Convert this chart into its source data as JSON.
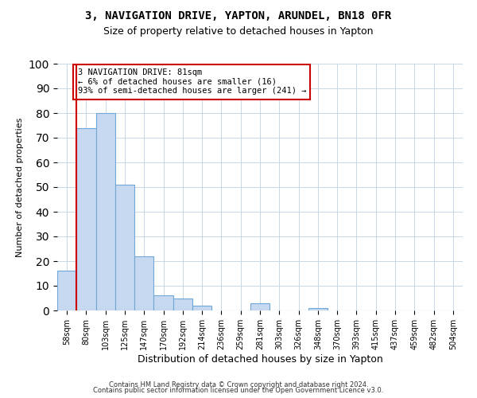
{
  "title": "3, NAVIGATION DRIVE, YAPTON, ARUNDEL, BN18 0FR",
  "subtitle": "Size of property relative to detached houses in Yapton",
  "xlabel": "Distribution of detached houses by size in Yapton",
  "ylabel": "Number of detached properties",
  "bin_labels": [
    "58sqm",
    "80sqm",
    "103sqm",
    "125sqm",
    "147sqm",
    "170sqm",
    "192sqm",
    "214sqm",
    "236sqm",
    "259sqm",
    "281sqm",
    "303sqm",
    "326sqm",
    "348sqm",
    "370sqm",
    "393sqm",
    "415sqm",
    "437sqm",
    "459sqm",
    "482sqm",
    "504sqm"
  ],
  "bar_heights": [
    16,
    74,
    80,
    51,
    22,
    6,
    5,
    2,
    0,
    0,
    3,
    0,
    0,
    1,
    0,
    0,
    0,
    0,
    0,
    0,
    0
  ],
  "bar_color": "#c6d9f0",
  "bar_edge_color": "#6fa8d6",
  "ylim": [
    0,
    100
  ],
  "yticks": [
    0,
    10,
    20,
    30,
    40,
    50,
    60,
    70,
    80,
    90,
    100
  ],
  "property_line_x": 1,
  "property_line_color": "#cc0000",
  "annotation_title": "3 NAVIGATION DRIVE: 81sqm",
  "annotation_line1": "← 6% of detached houses are smaller (16)",
  "annotation_line2": "93% of semi-detached houses are larger (241) →",
  "annotation_box_color": "#cc0000",
  "footnote1": "Contains HM Land Registry data © Crown copyright and database right 2024.",
  "footnote2": "Contains public sector information licensed under the Open Government Licence v3.0.",
  "background_color": "#ffffff",
  "grid_color": "#c8d8e8"
}
